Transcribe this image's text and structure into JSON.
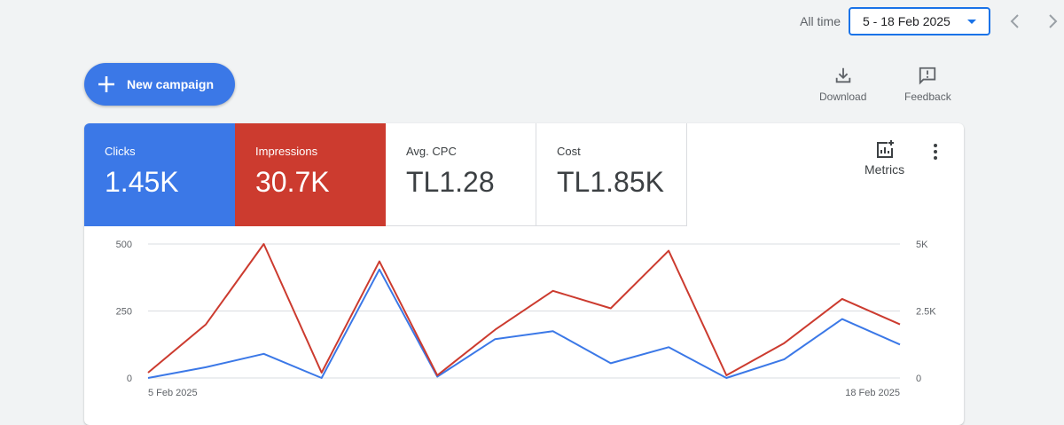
{
  "header": {
    "date_range_label": "All time",
    "date_range_value": "5 - 18 Feb 2025"
  },
  "actions": {
    "new_campaign_label": "New campaign",
    "download_label": "Download",
    "feedback_label": "Feedback"
  },
  "scorecards": [
    {
      "label": "Clicks",
      "value": "1.45K",
      "color": "#3b78e7"
    },
    {
      "label": "Impressions",
      "value": "30.7K",
      "color": "#cc3b2f"
    },
    {
      "label": "Avg. CPC",
      "value": "TL1.28"
    },
    {
      "label": "Cost",
      "value": "TL1.85K"
    }
  ],
  "card_tools": {
    "metrics_label": "Metrics"
  },
  "chart_data": {
    "type": "line",
    "x": [
      "5 Feb 2025",
      "6 Feb 2025",
      "7 Feb 2025",
      "8 Feb 2025",
      "9 Feb 2025",
      "10 Feb 2025",
      "11 Feb 2025",
      "12 Feb 2025",
      "13 Feb 2025",
      "14 Feb 2025",
      "15 Feb 2025",
      "16 Feb 2025",
      "17 Feb 2025",
      "18 Feb 2025"
    ],
    "x_tick_labels": [
      "5 Feb 2025",
      "18 Feb 2025"
    ],
    "left_axis": {
      "ticks": [
        "0",
        "250",
        "500"
      ],
      "range": [
        0,
        500
      ]
    },
    "right_axis": {
      "ticks": [
        "0",
        "2.5K",
        "5K"
      ],
      "range": [
        0,
        5000
      ]
    },
    "series": [
      {
        "name": "Clicks",
        "axis": "left",
        "color": "#3b78e7",
        "values": [
          0,
          40,
          90,
          0,
          405,
          5,
          145,
          175,
          55,
          115,
          0,
          70,
          220,
          125
        ]
      },
      {
        "name": "Impressions",
        "axis": "right",
        "color": "#cc3b2f",
        "values": [
          200,
          2000,
          5000,
          200,
          4350,
          100,
          1800,
          3250,
          2600,
          4750,
          100,
          1300,
          2950,
          2000
        ]
      }
    ],
    "grid": true
  }
}
